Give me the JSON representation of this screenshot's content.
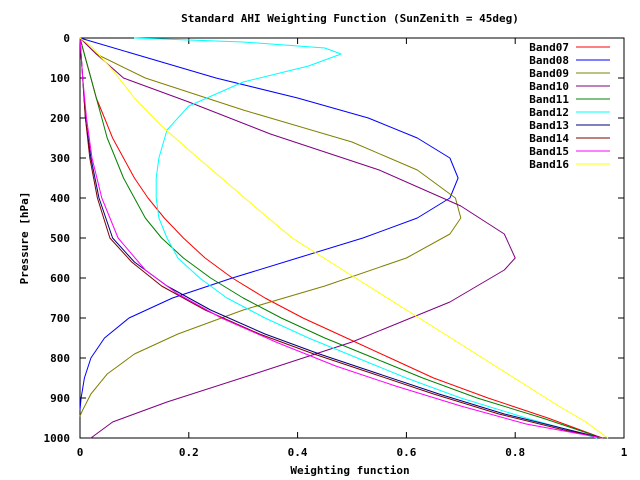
{
  "chart_data": {
    "type": "line",
    "title": "Standard AHI Weighting Function (SunZenith = 45deg)",
    "xlabel": "Weighting function",
    "ylabel": "Pressure [hPa]",
    "xlim": [
      0,
      1
    ],
    "ylim": [
      1000,
      0
    ],
    "y_inverted": true,
    "xticks": [
      0,
      0.2,
      0.4,
      0.6,
      0.8,
      1
    ],
    "xtick_labels": [
      "0",
      "0.2",
      "0.4",
      "0.6",
      "0.8",
      "1"
    ],
    "yticks": [
      0,
      100,
      200,
      300,
      400,
      500,
      600,
      700,
      800,
      900,
      1000
    ],
    "ytick_labels": [
      "0",
      "100",
      "200",
      "300",
      "400",
      "500",
      "600",
      "700",
      "800",
      "900",
      "1000"
    ],
    "grid": false,
    "legend_position": "top-right",
    "series": [
      {
        "name": "Band07",
        "color": "#ff0000",
        "points": [
          [
            0,
            0
          ],
          [
            0.01,
            50
          ],
          [
            0.02,
            100
          ],
          [
            0.03,
            150
          ],
          [
            0.045,
            200
          ],
          [
            0.06,
            250
          ],
          [
            0.08,
            300
          ],
          [
            0.1,
            350
          ],
          [
            0.125,
            400
          ],
          [
            0.155,
            450
          ],
          [
            0.19,
            500
          ],
          [
            0.23,
            550
          ],
          [
            0.28,
            600
          ],
          [
            0.34,
            650
          ],
          [
            0.41,
            700
          ],
          [
            0.49,
            750
          ],
          [
            0.57,
            800
          ],
          [
            0.65,
            850
          ],
          [
            0.75,
            900
          ],
          [
            0.86,
            950
          ],
          [
            0.96,
            1000
          ]
        ]
      },
      {
        "name": "Band08",
        "color": "#0000ff",
        "points": [
          [
            0,
            0
          ],
          [
            0.1,
            40
          ],
          [
            0.25,
            100
          ],
          [
            0.4,
            150
          ],
          [
            0.53,
            200
          ],
          [
            0.62,
            250
          ],
          [
            0.68,
            300
          ],
          [
            0.695,
            350
          ],
          [
            0.68,
            400
          ],
          [
            0.62,
            450
          ],
          [
            0.52,
            500
          ],
          [
            0.4,
            550
          ],
          [
            0.28,
            600
          ],
          [
            0.17,
            650
          ],
          [
            0.09,
            700
          ],
          [
            0.045,
            750
          ],
          [
            0.02,
            800
          ],
          [
            0.008,
            850
          ],
          [
            0.002,
            900
          ],
          [
            0,
            930
          ]
        ]
      },
      {
        "name": "Band09",
        "color": "#808000",
        "points": [
          [
            0,
            0
          ],
          [
            0.03,
            40
          ],
          [
            0.12,
            100
          ],
          [
            0.3,
            180
          ],
          [
            0.5,
            260
          ],
          [
            0.62,
            330
          ],
          [
            0.69,
            400
          ],
          [
            0.7,
            450
          ],
          [
            0.68,
            490
          ],
          [
            0.6,
            550
          ],
          [
            0.45,
            620
          ],
          [
            0.3,
            680
          ],
          [
            0.18,
            740
          ],
          [
            0.1,
            790
          ],
          [
            0.05,
            840
          ],
          [
            0.02,
            890
          ],
          [
            0.005,
            930
          ],
          [
            0,
            945
          ]
        ]
      },
      {
        "name": "Band10",
        "color": "#800080",
        "points": [
          [
            0,
            0
          ],
          [
            0.03,
            40
          ],
          [
            0.08,
            100
          ],
          [
            0.2,
            160
          ],
          [
            0.35,
            240
          ],
          [
            0.55,
            330
          ],
          [
            0.7,
            420
          ],
          [
            0.78,
            490
          ],
          [
            0.8,
            550
          ],
          [
            0.78,
            580
          ],
          [
            0.68,
            660
          ],
          [
            0.5,
            760
          ],
          [
            0.32,
            840
          ],
          [
            0.16,
            910
          ],
          [
            0.06,
            960
          ],
          [
            0.02,
            1000
          ]
        ]
      },
      {
        "name": "Band11",
        "color": "#008000",
        "points": [
          [
            0,
            0
          ],
          [
            0.01,
            50
          ],
          [
            0.02,
            100
          ],
          [
            0.03,
            150
          ],
          [
            0.04,
            200
          ],
          [
            0.05,
            250
          ],
          [
            0.065,
            300
          ],
          [
            0.08,
            350
          ],
          [
            0.1,
            400
          ],
          [
            0.12,
            450
          ],
          [
            0.15,
            500
          ],
          [
            0.19,
            550
          ],
          [
            0.24,
            600
          ],
          [
            0.3,
            650
          ],
          [
            0.37,
            700
          ],
          [
            0.45,
            750
          ],
          [
            0.54,
            800
          ],
          [
            0.63,
            850
          ],
          [
            0.73,
            900
          ],
          [
            0.85,
            950
          ],
          [
            0.96,
            1000
          ]
        ]
      },
      {
        "name": "Band12",
        "color": "#00ffff",
        "points": [
          [
            0.1,
            0
          ],
          [
            0.3,
            10
          ],
          [
            0.45,
            25
          ],
          [
            0.48,
            40
          ],
          [
            0.42,
            70
          ],
          [
            0.3,
            110
          ],
          [
            0.2,
            170
          ],
          [
            0.16,
            230
          ],
          [
            0.145,
            300
          ],
          [
            0.14,
            350
          ],
          [
            0.14,
            400
          ],
          [
            0.145,
            450
          ],
          [
            0.16,
            500
          ],
          [
            0.18,
            550
          ],
          [
            0.22,
            600
          ],
          [
            0.27,
            650
          ],
          [
            0.34,
            700
          ],
          [
            0.42,
            750
          ],
          [
            0.51,
            800
          ],
          [
            0.6,
            850
          ],
          [
            0.7,
            900
          ],
          [
            0.82,
            950
          ],
          [
            0.95,
            1000
          ]
        ]
      },
      {
        "name": "Band13",
        "color": "#000080",
        "points": [
          [
            0,
            0
          ],
          [
            0.005,
            100
          ],
          [
            0.01,
            200
          ],
          [
            0.02,
            300
          ],
          [
            0.035,
            400
          ],
          [
            0.06,
            500
          ],
          [
            0.1,
            560
          ],
          [
            0.16,
            620
          ],
          [
            0.24,
            680
          ],
          [
            0.34,
            740
          ],
          [
            0.44,
            790
          ],
          [
            0.55,
            840
          ],
          [
            0.66,
            890
          ],
          [
            0.78,
            940
          ],
          [
            0.9,
            980
          ],
          [
            0.96,
            1000
          ]
        ]
      },
      {
        "name": "Band14",
        "color": "#800000",
        "points": [
          [
            0,
            0
          ],
          [
            0.005,
            100
          ],
          [
            0.01,
            200
          ],
          [
            0.018,
            300
          ],
          [
            0.032,
            400
          ],
          [
            0.055,
            500
          ],
          [
            0.095,
            560
          ],
          [
            0.15,
            620
          ],
          [
            0.23,
            680
          ],
          [
            0.33,
            740
          ],
          [
            0.43,
            790
          ],
          [
            0.54,
            840
          ],
          [
            0.65,
            890
          ],
          [
            0.77,
            940
          ],
          [
            0.89,
            980
          ],
          [
            0.96,
            1000
          ]
        ]
      },
      {
        "name": "Band15",
        "color": "#ff00ff",
        "points": [
          [
            0,
            0
          ],
          [
            0.005,
            100
          ],
          [
            0.012,
            200
          ],
          [
            0.022,
            300
          ],
          [
            0.04,
            400
          ],
          [
            0.07,
            500
          ],
          [
            0.12,
            580
          ],
          [
            0.18,
            640
          ],
          [
            0.26,
            700
          ],
          [
            0.36,
            760
          ],
          [
            0.47,
            820
          ],
          [
            0.58,
            870
          ],
          [
            0.7,
            920
          ],
          [
            0.82,
            965
          ],
          [
            0.96,
            1000
          ]
        ]
      },
      {
        "name": "Band16",
        "color": "#ffff00",
        "points": [
          [
            0,
            0
          ],
          [
            0.02,
            20
          ],
          [
            0.06,
            80
          ],
          [
            0.1,
            150
          ],
          [
            0.15,
            220
          ],
          [
            0.2,
            280
          ],
          [
            0.26,
            350
          ],
          [
            0.32,
            420
          ],
          [
            0.39,
            500
          ],
          [
            0.46,
            560
          ],
          [
            0.53,
            620
          ],
          [
            0.6,
            680
          ],
          [
            0.67,
            740
          ],
          [
            0.74,
            800
          ],
          [
            0.81,
            860
          ],
          [
            0.88,
            920
          ],
          [
            0.93,
            960
          ],
          [
            0.97,
            1000
          ]
        ]
      }
    ]
  }
}
